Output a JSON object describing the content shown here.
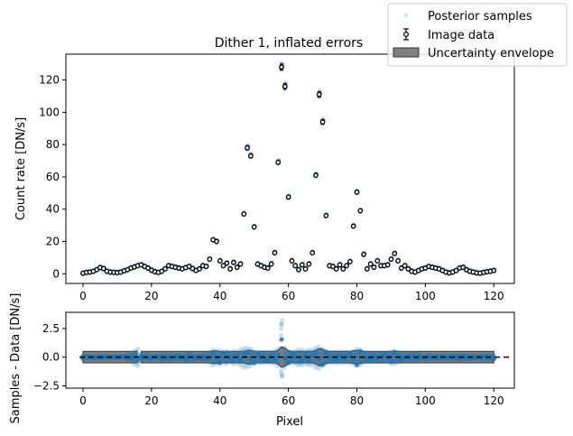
{
  "chart_data": [
    {
      "type": "scatter",
      "title": "Dither 1, inflated errors",
      "xlabel": "",
      "ylabel": "Count rate [DN/s]",
      "xlim": [
        -5,
        126
      ],
      "ylim": [
        -6,
        136
      ],
      "xticks": [
        0,
        20,
        40,
        60,
        80,
        100,
        120
      ],
      "yticks": [
        0,
        20,
        40,
        60,
        80,
        100,
        120
      ],
      "legend": {
        "placement": "top-right",
        "entries": [
          "Posterior samples",
          "Image data",
          "Uncertainty envelope"
        ]
      },
      "x": [
        0,
        1,
        2,
        3,
        4,
        5,
        6,
        7,
        8,
        9,
        10,
        11,
        12,
        13,
        14,
        15,
        16,
        17,
        18,
        19,
        20,
        21,
        22,
        23,
        24,
        25,
        26,
        27,
        28,
        29,
        30,
        31,
        32,
        33,
        34,
        35,
        36,
        37,
        38,
        39,
        40,
        41,
        42,
        43,
        44,
        45,
        46,
        47,
        48,
        49,
        50,
        51,
        52,
        53,
        54,
        55,
        56,
        57,
        58,
        59,
        60,
        61,
        62,
        63,
        64,
        65,
        66,
        67,
        68,
        69,
        70,
        71,
        72,
        73,
        74,
        75,
        76,
        77,
        78,
        79,
        80,
        81,
        82,
        83,
        84,
        85,
        86,
        87,
        88,
        89,
        90,
        91,
        92,
        93,
        94,
        95,
        96,
        97,
        98,
        99,
        100,
        101,
        102,
        103,
        104,
        105,
        106,
        107,
        108,
        109,
        110,
        111,
        112,
        113,
        114,
        115,
        116,
        117,
        118,
        119,
        120
      ],
      "values": [
        0.3,
        0.8,
        1.0,
        1.5,
        2.5,
        3.8,
        3.2,
        1.5,
        1.0,
        0.8,
        0.7,
        1.0,
        1.8,
        2.5,
        3.5,
        4.2,
        5.0,
        5.5,
        4.5,
        3.5,
        2.2,
        1.2,
        0.8,
        1.5,
        3.0,
        5.0,
        4.5,
        4.0,
        3.5,
        3.0,
        3.8,
        4.5,
        3.2,
        2.0,
        3.0,
        5.0,
        4.5,
        9.0,
        21.0,
        20.0,
        8.0,
        5.0,
        6.5,
        3.0,
        7.0,
        4.0,
        6.0,
        37.0,
        78.0,
        73.0,
        29.0,
        6.0,
        5.0,
        4.0,
        3.5,
        6.0,
        13.0,
        69.0,
        128.0,
        116.0,
        47.5,
        8.0,
        5.0,
        2.5,
        5.5,
        3.0,
        6.0,
        13.0,
        61.0,
        111.0,
        94.0,
        36.0,
        5.0,
        4.5,
        3.0,
        5.5,
        3.0,
        5.0,
        7.5,
        29.5,
        50.5,
        39.0,
        12.0,
        3.0,
        6.0,
        4.0,
        8.0,
        5.0,
        5.0,
        5.5,
        9.0,
        12.5,
        8.0,
        3.5,
        5.0,
        3.0,
        1.5,
        1.0,
        2.0,
        3.0,
        3.5,
        4.5,
        4.0,
        3.5,
        3.0,
        2.0,
        1.0,
        0.5,
        1.0,
        2.0,
        3.5,
        4.0,
        2.5,
        1.5,
        1.0,
        0.5,
        0.3,
        0.8,
        1.2,
        1.5,
        2.0
      ],
      "posterior_offsets": [
        -0.3,
        0.5,
        1.2,
        0.8,
        -0.4,
        0.6,
        1.5,
        -0.7,
        0.9,
        -1.2,
        0.4,
        1.0,
        -0.5
      ],
      "series_colors": {
        "samples": "#1f77b4",
        "data_face": "#ffffff",
        "data_edge": "#000000"
      }
    },
    {
      "type": "scatter",
      "title": "",
      "xlabel": "Pixel",
      "ylabel": "Samples - Data [DN/s]",
      "xlim": [
        -5,
        126
      ],
      "ylim": [
        -2.7,
        3.9
      ],
      "xticks": [
        0,
        20,
        40,
        60,
        80,
        100,
        120
      ],
      "yticks": [
        -2.5,
        0.0,
        2.5
      ],
      "ytick_labels": [
        "−2.5",
        "0.0",
        "2.5"
      ],
      "zero_line": "dashed",
      "envelope_halfwidth": [
        0.5,
        0.5,
        0.5,
        0.5,
        0.5,
        0.5,
        0.5,
        0.5,
        0.5,
        0.5,
        0.5,
        0.5,
        0.5,
        0.5,
        0.5,
        0.5,
        0.5,
        0.5,
        0.5,
        0.5,
        0.5,
        0.5,
        0.5,
        0.5,
        0.5,
        0.5,
        0.5,
        0.5,
        0.5,
        0.5,
        0.5,
        0.5,
        0.5,
        0.5,
        0.5,
        0.5,
        0.5,
        0.5,
        0.55,
        0.55,
        0.5,
        0.5,
        0.5,
        0.5,
        0.5,
        0.5,
        0.5,
        0.5,
        0.6,
        0.6,
        0.5,
        0.5,
        0.5,
        0.5,
        0.5,
        0.5,
        0.5,
        0.6,
        0.9,
        0.8,
        0.55,
        0.5,
        0.5,
        0.5,
        0.5,
        0.5,
        0.5,
        0.5,
        0.6,
        0.75,
        0.7,
        0.55,
        0.5,
        0.5,
        0.5,
        0.5,
        0.5,
        0.5,
        0.5,
        0.55,
        0.6,
        0.55,
        0.5,
        0.5,
        0.5,
        0.5,
        0.5,
        0.5,
        0.5,
        0.5,
        0.5,
        0.5,
        0.5,
        0.5,
        0.5,
        0.5,
        0.5,
        0.5,
        0.5,
        0.5,
        0.5,
        0.5,
        0.5,
        0.5,
        0.5,
        0.5,
        0.5,
        0.5,
        0.5,
        0.5,
        0.5,
        0.5,
        0.5,
        0.5,
        0.5,
        0.5,
        0.5,
        0.5,
        0.5,
        0.5,
        0.5
      ],
      "envelope_gap": [
        16,
        17
      ],
      "residual_spread": [
        0.15,
        0.1,
        0.15,
        0.1,
        0.1,
        0.15,
        0.2,
        0.1,
        0.1,
        0.1,
        0.1,
        0.1,
        0.1,
        0.2,
        0.3,
        0.6,
        0.8,
        0.3,
        0.2,
        0.3,
        0.2,
        0.1,
        0.2,
        0.3,
        0.2,
        0.3,
        0.3,
        0.2,
        0.3,
        0.2,
        0.3,
        0.3,
        0.3,
        0.2,
        0.2,
        0.3,
        0.3,
        0.5,
        0.7,
        0.6,
        0.6,
        0.5,
        0.6,
        0.4,
        0.6,
        0.5,
        0.7,
        0.9,
        0.9,
        0.8,
        0.6,
        0.5,
        0.5,
        0.5,
        0.5,
        0.5,
        0.6,
        0.8,
        3.2,
        0.9,
        0.6,
        0.5,
        0.6,
        0.7,
        0.7,
        0.6,
        0.7,
        0.7,
        0.9,
        1.0,
        0.8,
        0.6,
        0.5,
        0.5,
        0.5,
        0.5,
        0.5,
        0.5,
        0.5,
        0.6,
        0.8,
        0.7,
        0.5,
        0.4,
        0.4,
        0.4,
        0.4,
        0.4,
        0.4,
        0.4,
        0.5,
        0.6,
        0.5,
        0.4,
        0.3,
        0.3,
        0.3,
        0.3,
        0.3,
        0.2,
        0.2,
        0.2,
        0.2,
        0.2,
        0.2,
        0.2,
        0.2,
        0.2,
        0.2,
        0.2,
        0.2,
        0.2,
        0.2,
        0.2,
        0.2,
        0.2,
        0.2,
        0.2,
        0.2,
        0.2,
        0.2
      ],
      "series_colors": {
        "samples": "#1f77b4",
        "envelope": "#808080",
        "envelope_edge": "#333333"
      }
    }
  ]
}
